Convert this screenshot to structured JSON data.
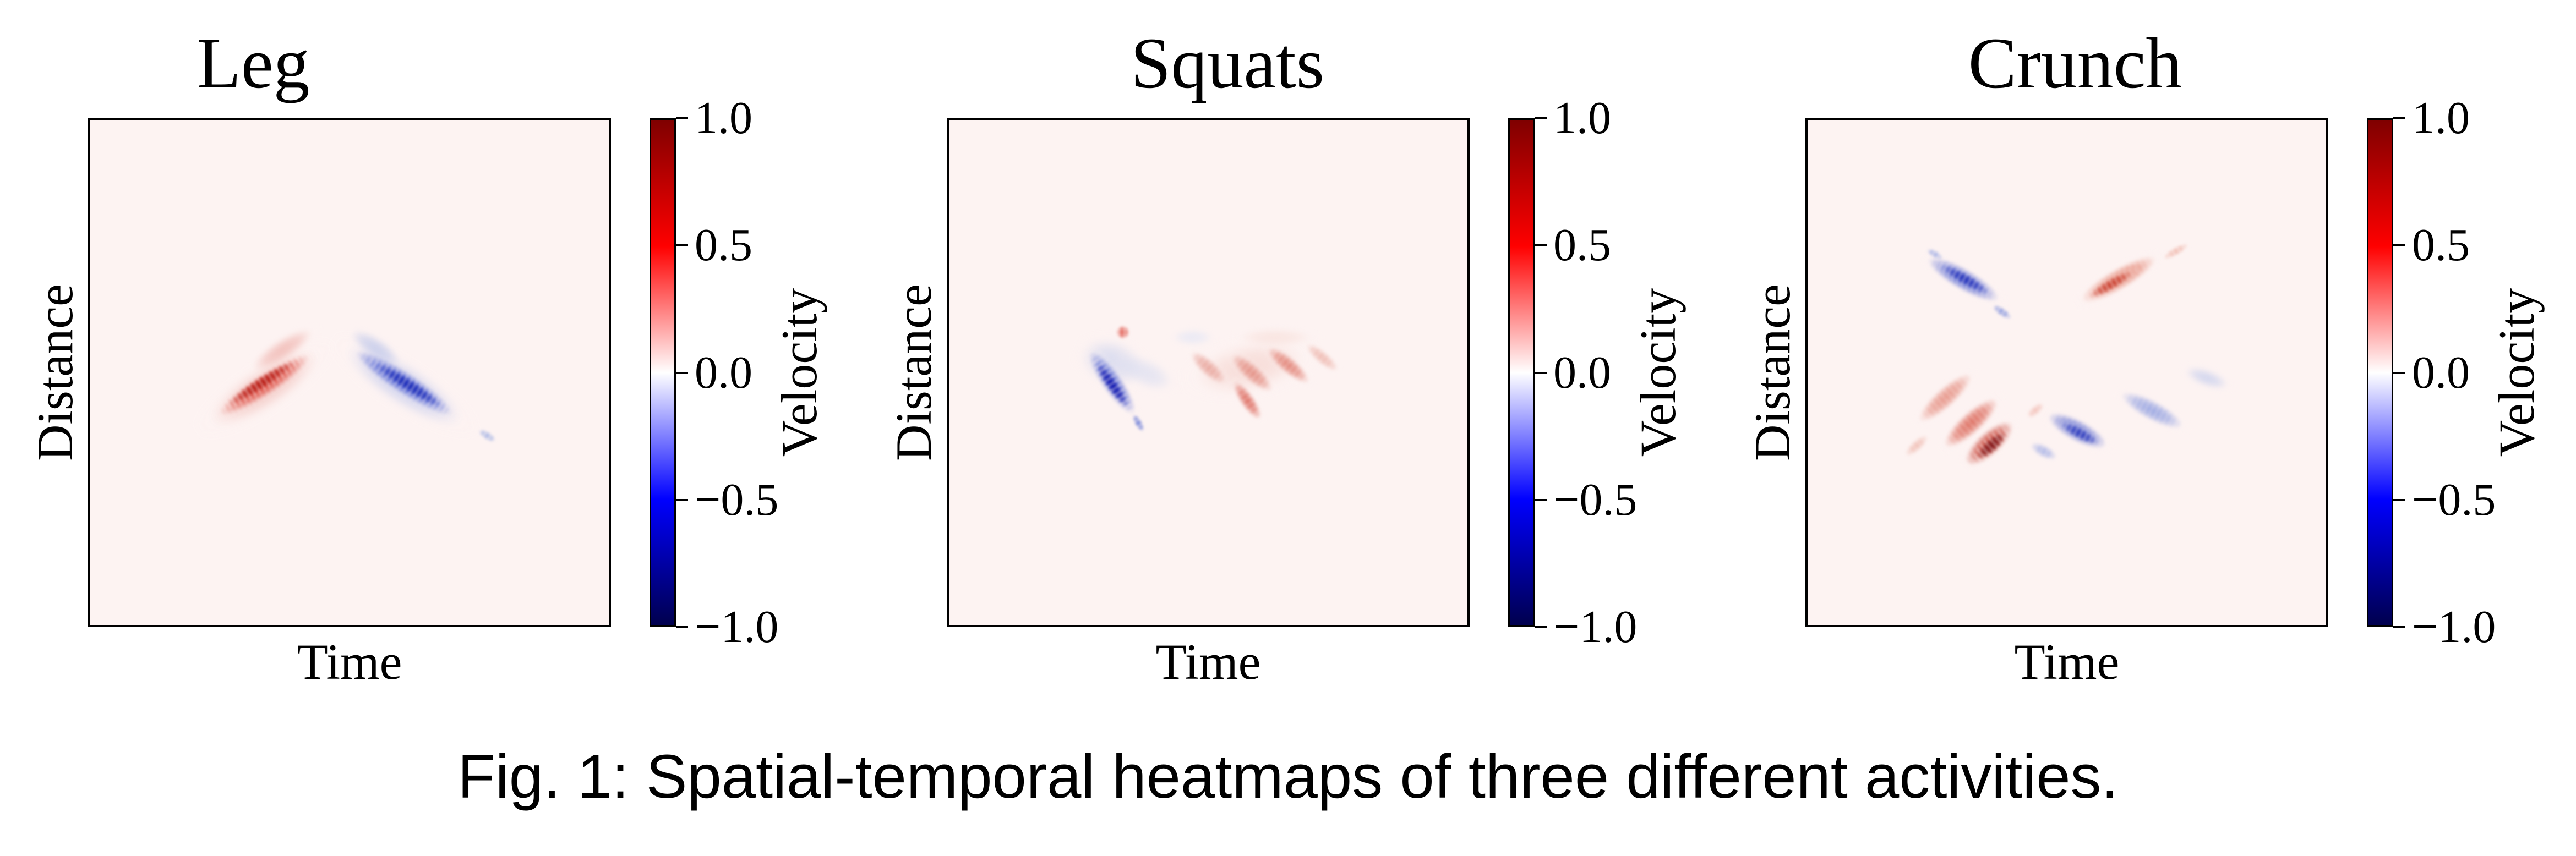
{
  "figure": {
    "caption": "Fig. 1: Spatial-temporal heatmaps of three different activities."
  },
  "colors": {
    "page_background": "#ffffff",
    "plot_background": "#fdf3f2",
    "axis_spine": "#000000",
    "colormap_name": "seismic",
    "colormap_stops": [
      "#7f0000",
      "#ff0000",
      "#ffffff",
      "#0000ff",
      "#00004d"
    ],
    "strong_positive_red": "#b3140d",
    "strong_negative_blue": "#0b11ad"
  },
  "chart_data": [
    {
      "type": "heatmap",
      "title": "Leg",
      "xlabel": "Time",
      "ylabel": "Distance",
      "colorbar_label": "Velocity",
      "colorbar_ticks": [
        1.0,
        0.5,
        0.0,
        -0.5,
        -1.0
      ],
      "colorbar_tick_labels": [
        "1.0",
        "0.5",
        "0.0",
        "−0.5",
        "−1.0"
      ],
      "value_range": [
        -1.0,
        1.0
      ],
      "pattern_summary": "Inverted-V chevron: positive (red) streak rising left-to-center, negative (blue) streak falling center-to-right, in upper-middle of plot",
      "features": [
        {
          "cx": 0.335,
          "cy": 0.53,
          "w": 0.31,
          "h": 0.1,
          "rot": -33,
          "color": "#efb6b0",
          "opacity": 0.85,
          "blur": 7,
          "polarity": "positive",
          "intensity": 0.3
        },
        {
          "cx": 0.335,
          "cy": 0.525,
          "w": 0.26,
          "h": 0.055,
          "rot": -33,
          "color": "#dc4034",
          "opacity": 0.95,
          "blur": 3,
          "polarity": "positive",
          "intensity": 0.7
        },
        {
          "cx": 0.33,
          "cy": 0.52,
          "w": 0.19,
          "h": 0.03,
          "rot": -33,
          "color": "#b3140d",
          "opacity": 0.9,
          "blur": 2,
          "polarity": "positive",
          "intensity": 0.95
        },
        {
          "cx": 0.37,
          "cy": 0.455,
          "w": 0.17,
          "h": 0.05,
          "rot": -33,
          "color": "#e89189",
          "opacity": 0.6,
          "blur": 5,
          "polarity": "positive",
          "intensity": 0.25
        },
        {
          "cx": 0.605,
          "cy": 0.525,
          "w": 0.33,
          "h": 0.1,
          "rot": 33,
          "color": "#b6c1ec",
          "opacity": 0.85,
          "blur": 7,
          "polarity": "negative",
          "intensity": 0.3
        },
        {
          "cx": 0.605,
          "cy": 0.52,
          "w": 0.28,
          "h": 0.055,
          "rot": 33,
          "color": "#3349cf",
          "opacity": 0.95,
          "blur": 3,
          "polarity": "negative",
          "intensity": 0.7
        },
        {
          "cx": 0.615,
          "cy": 0.525,
          "w": 0.19,
          "h": 0.03,
          "rot": 33,
          "color": "#1223b5",
          "opacity": 0.9,
          "blur": 2,
          "polarity": "negative",
          "intensity": 0.95
        },
        {
          "cx": 0.55,
          "cy": 0.45,
          "w": 0.14,
          "h": 0.05,
          "rot": 33,
          "color": "#9fb0e6",
          "opacity": 0.6,
          "blur": 5,
          "polarity": "negative",
          "intensity": 0.25
        },
        {
          "cx": 0.765,
          "cy": 0.625,
          "w": 0.05,
          "h": 0.022,
          "rot": 33,
          "color": "#8fa3e0",
          "opacity": 0.7,
          "blur": 2,
          "polarity": "negative",
          "intensity": 0.2
        }
      ]
    },
    {
      "type": "heatmap",
      "title": "Squats",
      "xlabel": "Time",
      "ylabel": "Distance",
      "colorbar_label": "Velocity",
      "colorbar_ticks": [
        1.0,
        0.5,
        0.0,
        -0.5,
        -1.0
      ],
      "colorbar_tick_labels": [
        "1.0",
        "0.5",
        "0.0",
        "−0.5",
        "−1.0"
      ],
      "value_range": [
        -1.0,
        1.0
      ],
      "pattern_summary": "Mid-plot cluster: one intense steep dark-blue streak at left with faint blue cloud, several faint salmon-red diagonal streaks to its right, small red dot above",
      "features": [
        {
          "cx": 0.315,
          "cy": 0.48,
          "w": 0.16,
          "h": 0.11,
          "rot": 20,
          "color": "#c9d1ee",
          "opacity": 0.8,
          "blur": 7,
          "polarity": "negative",
          "intensity": 0.2
        },
        {
          "cx": 0.38,
          "cy": 0.5,
          "w": 0.14,
          "h": 0.07,
          "rot": 25,
          "color": "#d4daf1",
          "opacity": 0.7,
          "blur": 6,
          "polarity": "negative",
          "intensity": 0.15
        },
        {
          "cx": 0.315,
          "cy": 0.52,
          "w": 0.185,
          "h": 0.05,
          "rot": 55,
          "color": "#3e53cf",
          "opacity": 0.9,
          "blur": 3,
          "polarity": "negative",
          "intensity": 0.7
        },
        {
          "cx": 0.315,
          "cy": 0.525,
          "w": 0.13,
          "h": 0.028,
          "rot": 55,
          "color": "#0b11ad",
          "opacity": 0.95,
          "blur": 2,
          "polarity": "negative",
          "intensity": 0.95
        },
        {
          "cx": 0.365,
          "cy": 0.6,
          "w": 0.05,
          "h": 0.02,
          "rot": 60,
          "color": "#5b6fd4",
          "opacity": 0.8,
          "blur": 2,
          "polarity": "negative",
          "intensity": 0.4
        },
        {
          "cx": 0.335,
          "cy": 0.42,
          "w": 0.033,
          "h": 0.035,
          "rot": 0,
          "color": "#df4f44",
          "opacity": 0.85,
          "blur": 2,
          "polarity": "positive",
          "intensity": 0.55
        },
        {
          "cx": 0.58,
          "cy": 0.49,
          "w": 0.27,
          "h": 0.12,
          "rot": -12,
          "color": "#f4d2cc",
          "opacity": 0.8,
          "blur": 8,
          "polarity": "positive",
          "intensity": 0.15
        },
        {
          "cx": 0.5,
          "cy": 0.49,
          "w": 0.11,
          "h": 0.04,
          "rot": 42,
          "color": "#e39186",
          "opacity": 0.8,
          "blur": 3,
          "polarity": "positive",
          "intensity": 0.35
        },
        {
          "cx": 0.585,
          "cy": 0.5,
          "w": 0.13,
          "h": 0.042,
          "rot": 42,
          "color": "#df7d70",
          "opacity": 0.85,
          "blur": 3,
          "polarity": "positive",
          "intensity": 0.45
        },
        {
          "cx": 0.655,
          "cy": 0.485,
          "w": 0.13,
          "h": 0.04,
          "rot": 40,
          "color": "#dd6e60",
          "opacity": 0.85,
          "blur": 3,
          "polarity": "positive",
          "intensity": 0.5
        },
        {
          "cx": 0.575,
          "cy": 0.555,
          "w": 0.11,
          "h": 0.035,
          "rot": 55,
          "color": "#d95a4d",
          "opacity": 0.9,
          "blur": 3,
          "polarity": "positive",
          "intensity": 0.55
        },
        {
          "cx": 0.72,
          "cy": 0.47,
          "w": 0.1,
          "h": 0.032,
          "rot": 40,
          "color": "#e8a094",
          "opacity": 0.7,
          "blur": 3,
          "polarity": "positive",
          "intensity": 0.3
        },
        {
          "cx": 0.47,
          "cy": 0.43,
          "w": 0.1,
          "h": 0.04,
          "rot": 0,
          "color": "#dde3f6",
          "opacity": 0.7,
          "blur": 5,
          "polarity": "negative",
          "intensity": 0.12
        },
        {
          "cx": 0.63,
          "cy": 0.43,
          "w": 0.18,
          "h": 0.045,
          "rot": 0,
          "color": "#f7dcd6",
          "opacity": 0.7,
          "blur": 5,
          "polarity": "positive",
          "intensity": 0.12
        }
      ]
    },
    {
      "type": "heatmap",
      "title": "Crunch",
      "xlabel": "Time",
      "ylabel": "Distance",
      "colorbar_label": "Velocity",
      "colorbar_ticks": [
        1.0,
        0.5,
        0.0,
        -0.5,
        -1.0
      ],
      "colorbar_tick_labels": [
        "1.0",
        "0.5",
        "0.0",
        "−0.5",
        "−1.0"
      ],
      "value_range": [
        -1.0,
        1.0
      ],
      "pattern_summary": "Upper V of one blue (falling) and one red (rising) streak; lower band of parallel red streaks with intense dark-maroon blob at left-center and blue streaks with faint specks to the right",
      "features": [
        {
          "cx": 0.3,
          "cy": 0.315,
          "w": 0.2,
          "h": 0.055,
          "rot": 30,
          "color": "#4257cf",
          "opacity": 0.9,
          "blur": 3,
          "polarity": "negative",
          "intensity": 0.6
        },
        {
          "cx": 0.305,
          "cy": 0.315,
          "w": 0.13,
          "h": 0.028,
          "rot": 30,
          "color": "#1b2ab8",
          "opacity": 0.9,
          "blur": 2,
          "polarity": "negative",
          "intensity": 0.9
        },
        {
          "cx": 0.375,
          "cy": 0.38,
          "w": 0.055,
          "h": 0.022,
          "rot": 35,
          "color": "#7487da",
          "opacity": 0.75,
          "blur": 2,
          "polarity": "negative",
          "intensity": 0.3
        },
        {
          "cx": 0.245,
          "cy": 0.265,
          "w": 0.045,
          "h": 0.02,
          "rot": 30,
          "color": "#8a9ce1",
          "opacity": 0.7,
          "blur": 2,
          "polarity": "negative",
          "intensity": 0.25
        },
        {
          "cx": 0.6,
          "cy": 0.315,
          "w": 0.21,
          "h": 0.055,
          "rot": -30,
          "color": "#e0745f",
          "opacity": 0.85,
          "blur": 3,
          "polarity": "positive",
          "intensity": 0.5
        },
        {
          "cx": 0.585,
          "cy": 0.325,
          "w": 0.12,
          "h": 0.028,
          "rot": -30,
          "color": "#c5301f",
          "opacity": 0.85,
          "blur": 2,
          "polarity": "positive",
          "intensity": 0.8
        },
        {
          "cx": 0.71,
          "cy": 0.26,
          "w": 0.07,
          "h": 0.022,
          "rot": -30,
          "color": "#edab9e",
          "opacity": 0.7,
          "blur": 2,
          "polarity": "positive",
          "intensity": 0.25
        },
        {
          "cx": 0.265,
          "cy": 0.55,
          "w": 0.17,
          "h": 0.05,
          "rot": -42,
          "color": "#e07a6a",
          "opacity": 0.8,
          "blur": 3,
          "polarity": "positive",
          "intensity": 0.4
        },
        {
          "cx": 0.315,
          "cy": 0.6,
          "w": 0.17,
          "h": 0.055,
          "rot": -42,
          "color": "#d65140",
          "opacity": 0.85,
          "blur": 3,
          "polarity": "positive",
          "intensity": 0.6
        },
        {
          "cx": 0.35,
          "cy": 0.64,
          "w": 0.15,
          "h": 0.06,
          "rot": -42,
          "color": "#c22f20",
          "opacity": 0.9,
          "blur": 3,
          "polarity": "positive",
          "intensity": 0.8
        },
        {
          "cx": 0.355,
          "cy": 0.645,
          "w": 0.09,
          "h": 0.034,
          "rot": -42,
          "color": "#7d1013",
          "opacity": 0.95,
          "blur": 2,
          "polarity": "positive",
          "intensity": 1.0
        },
        {
          "cx": 0.21,
          "cy": 0.645,
          "w": 0.07,
          "h": 0.026,
          "rot": -42,
          "color": "#eaa79a",
          "opacity": 0.7,
          "blur": 3,
          "polarity": "positive",
          "intensity": 0.25
        },
        {
          "cx": 0.52,
          "cy": 0.615,
          "w": 0.16,
          "h": 0.055,
          "rot": 28,
          "color": "#4458cc",
          "opacity": 0.85,
          "blur": 3,
          "polarity": "negative",
          "intensity": 0.6
        },
        {
          "cx": 0.525,
          "cy": 0.62,
          "w": 0.1,
          "h": 0.028,
          "rot": 28,
          "color": "#202fba",
          "opacity": 0.85,
          "blur": 2,
          "polarity": "negative",
          "intensity": 0.85
        },
        {
          "cx": 0.665,
          "cy": 0.575,
          "w": 0.17,
          "h": 0.05,
          "rot": 28,
          "color": "#7e91de",
          "opacity": 0.8,
          "blur": 3,
          "polarity": "negative",
          "intensity": 0.4
        },
        {
          "cx": 0.77,
          "cy": 0.51,
          "w": 0.11,
          "h": 0.04,
          "rot": 20,
          "color": "#b6c3ec",
          "opacity": 0.7,
          "blur": 5,
          "polarity": "negative",
          "intensity": 0.2
        },
        {
          "cx": 0.455,
          "cy": 0.655,
          "w": 0.07,
          "h": 0.03,
          "rot": 28,
          "color": "#8b9ce2",
          "opacity": 0.7,
          "blur": 3,
          "polarity": "negative",
          "intensity": 0.3
        },
        {
          "cx": 0.44,
          "cy": 0.575,
          "w": 0.05,
          "h": 0.022,
          "rot": -40,
          "color": "#eb9c8f",
          "opacity": 0.6,
          "blur": 3,
          "polarity": "positive",
          "intensity": 0.2
        }
      ]
    }
  ]
}
